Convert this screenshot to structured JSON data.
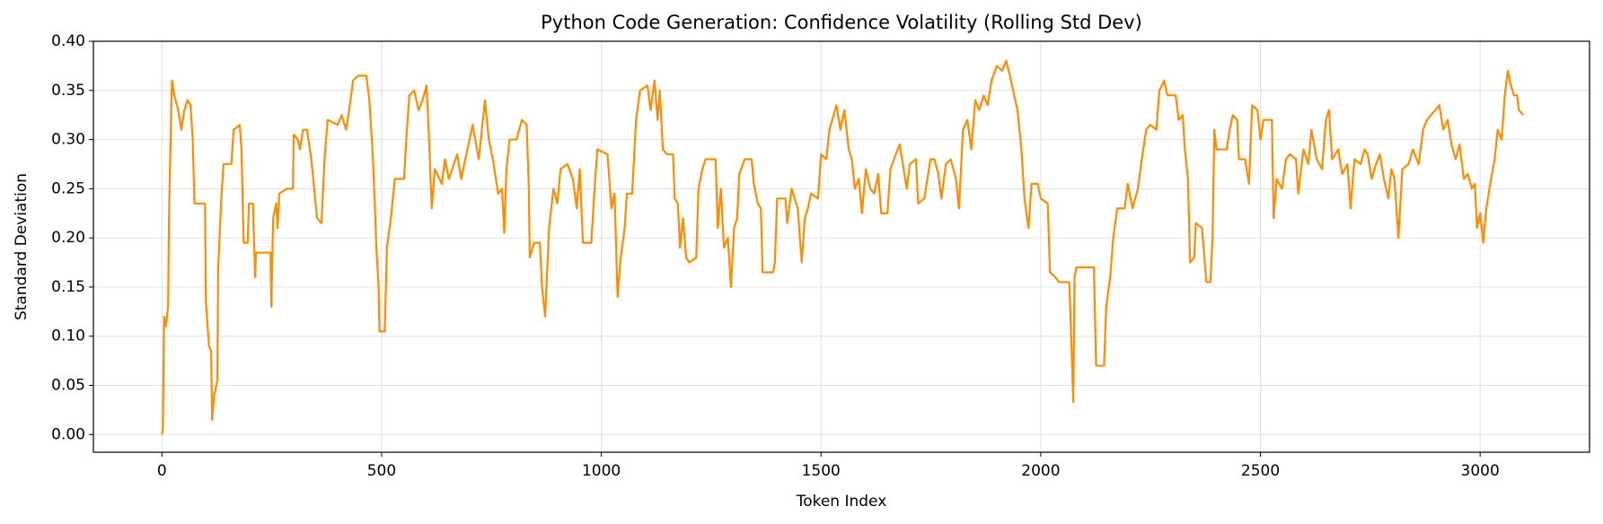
{
  "chart_data": {
    "type": "line",
    "title": "Python Code Generation: Confidence Volatility (Rolling Std Dev)",
    "xlabel": "Token Index",
    "ylabel": "Standard Deviation",
    "color": "#ff8c00",
    "grid": true,
    "xlim": [
      -156,
      3249
    ],
    "ylim": [
      -0.018,
      0.4
    ],
    "xticks": [
      0,
      500,
      1000,
      1500,
      2000,
      2500,
      3000
    ],
    "yticks": [
      {
        "value": 0,
        "label": "0.00"
      },
      {
        "value": 0.05,
        "label": "0.05"
      },
      {
        "value": 0.1,
        "label": "0.10"
      },
      {
        "value": 0.15,
        "label": "0.15"
      },
      {
        "value": 0.2,
        "label": "0.20"
      },
      {
        "value": 0.25,
        "label": "0.25"
      },
      {
        "value": 0.3,
        "label": "0.30"
      },
      {
        "value": 0.35,
        "label": "0.35"
      },
      {
        "value": 0.4,
        "label": "0.40"
      }
    ],
    "x": [
      0,
      2,
      5,
      9,
      14,
      16,
      21,
      23,
      28,
      37,
      44,
      51,
      58,
      65,
      70,
      74,
      98,
      100,
      107,
      112,
      114,
      119,
      126,
      128,
      135,
      140,
      158,
      163,
      177,
      181,
      186,
      195,
      198,
      207,
      212,
      214,
      247,
      249,
      253,
      260,
      263,
      267,
      284,
      298,
      300,
      309,
      314,
      321,
      330,
      340,
      353,
      363,
      370,
      377,
      400,
      409,
      419,
      426,
      435,
      447,
      465,
      472,
      479,
      484,
      488,
      493,
      495,
      507,
      512,
      521,
      530,
      551,
      556,
      563,
      574,
      584,
      593,
      602,
      607,
      614,
      621,
      637,
      644,
      653,
      672,
      681,
      707,
      721,
      735,
      744,
      753,
      765,
      774,
      779,
      784,
      791,
      807,
      819,
      830,
      835,
      837,
      847,
      860,
      865,
      872,
      881,
      891,
      900,
      907,
      923,
      935,
      944,
      951,
      958,
      977,
      986,
      991,
      1014,
      1023,
      1030,
      1037,
      1044,
      1053,
      1058,
      1070,
      1079,
      1088,
      1105,
      1112,
      1121,
      1128,
      1133,
      1140,
      1149,
      1163,
      1167,
      1174,
      1179,
      1186,
      1193,
      1200,
      1216,
      1221,
      1230,
      1237,
      1260,
      1265,
      1272,
      1279,
      1288,
      1295,
      1302,
      1309,
      1314,
      1326,
      1342,
      1347,
      1356,
      1363,
      1367,
      1391,
      1395,
      1400,
      1419,
      1423,
      1433,
      1447,
      1456,
      1463,
      1470,
      1477,
      1493,
      1500,
      1512,
      1519,
      1535,
      1544,
      1553,
      1563,
      1570,
      1577,
      1586,
      1593,
      1602,
      1612,
      1621,
      1630,
      1637,
      1651,
      1658,
      1670,
      1679,
      1688,
      1695,
      1702,
      1716,
      1721,
      1735,
      1749,
      1758,
      1767,
      1774,
      1784,
      1795,
      1807,
      1814,
      1823,
      1833,
      1842,
      1851,
      1860,
      1870,
      1879,
      1888,
      1900,
      1912,
      1921,
      1930,
      1937,
      1947,
      1956,
      1963,
      1972,
      1979,
      1993,
      2000,
      2016,
      2021,
      2033,
      2042,
      2065,
      2070,
      2074,
      2077,
      2081,
      2121,
      2126,
      2144,
      2149,
      2158,
      2165,
      2174,
      2191,
      2198,
      2209,
      2221,
      2230,
      2240,
      2249,
      2263,
      2270,
      2281,
      2288,
      2307,
      2314,
      2323,
      2328,
      2335,
      2340,
      2349,
      2353,
      2367,
      2377,
      2386,
      2391,
      2395,
      2400,
      2423,
      2430,
      2437,
      2447,
      2451,
      2465,
      2474,
      2481,
      2493,
      2500,
      2507,
      2526,
      2530,
      2537,
      2549,
      2558,
      2567,
      2581,
      2586,
      2598,
      2609,
      2616,
      2628,
      2640,
      2649,
      2656,
      2663,
      2677,
      2686,
      2698,
      2705,
      2714,
      2728,
      2737,
      2744,
      2753,
      2763,
      2772,
      2781,
      2791,
      2798,
      2805,
      2814,
      2823,
      2837,
      2847,
      2860,
      2870,
      2879,
      2888,
      2898,
      2907,
      2916,
      2926,
      2935,
      2944,
      2953,
      2963,
      2972,
      2981,
      2988,
      2993,
      3000,
      3007,
      3014,
      3023,
      3033,
      3040,
      3049,
      3056,
      3063,
      3070,
      3077,
      3084,
      3088,
      3098
    ],
    "values": [
      0.0,
      0.005,
      0.12,
      0.11,
      0.13,
      0.22,
      0.33,
      0.36,
      0.345,
      0.33,
      0.31,
      0.33,
      0.34,
      0.335,
      0.3,
      0.235,
      0.235,
      0.135,
      0.09,
      0.085,
      0.015,
      0.04,
      0.055,
      0.17,
      0.24,
      0.275,
      0.275,
      0.31,
      0.315,
      0.29,
      0.195,
      0.195,
      0.235,
      0.235,
      0.16,
      0.185,
      0.185,
      0.13,
      0.22,
      0.235,
      0.21,
      0.245,
      0.25,
      0.25,
      0.305,
      0.3,
      0.29,
      0.31,
      0.31,
      0.28,
      0.22,
      0.215,
      0.28,
      0.32,
      0.315,
      0.325,
      0.31,
      0.33,
      0.36,
      0.365,
      0.365,
      0.34,
      0.29,
      0.24,
      0.19,
      0.15,
      0.105,
      0.105,
      0.19,
      0.22,
      0.26,
      0.26,
      0.3,
      0.345,
      0.35,
      0.33,
      0.34,
      0.355,
      0.31,
      0.23,
      0.27,
      0.255,
      0.28,
      0.26,
      0.285,
      0.26,
      0.315,
      0.28,
      0.34,
      0.3,
      0.28,
      0.245,
      0.25,
      0.205,
      0.27,
      0.3,
      0.3,
      0.32,
      0.315,
      0.25,
      0.18,
      0.195,
      0.195,
      0.15,
      0.12,
      0.21,
      0.25,
      0.235,
      0.27,
      0.275,
      0.26,
      0.23,
      0.27,
      0.195,
      0.195,
      0.26,
      0.29,
      0.285,
      0.23,
      0.245,
      0.14,
      0.18,
      0.21,
      0.245,
      0.245,
      0.32,
      0.35,
      0.355,
      0.33,
      0.36,
      0.32,
      0.35,
      0.29,
      0.285,
      0.285,
      0.24,
      0.235,
      0.19,
      0.22,
      0.18,
      0.175,
      0.18,
      0.25,
      0.27,
      0.28,
      0.28,
      0.21,
      0.25,
      0.19,
      0.2,
      0.15,
      0.21,
      0.22,
      0.265,
      0.28,
      0.28,
      0.255,
      0.235,
      0.23,
      0.165,
      0.165,
      0.175,
      0.24,
      0.24,
      0.215,
      0.25,
      0.23,
      0.175,
      0.22,
      0.23,
      0.245,
      0.24,
      0.285,
      0.28,
      0.31,
      0.335,
      0.31,
      0.33,
      0.29,
      0.28,
      0.25,
      0.26,
      0.225,
      0.27,
      0.25,
      0.245,
      0.265,
      0.225,
      0.225,
      0.27,
      0.285,
      0.295,
      0.27,
      0.25,
      0.275,
      0.28,
      0.235,
      0.24,
      0.28,
      0.28,
      0.265,
      0.24,
      0.275,
      0.28,
      0.26,
      0.23,
      0.31,
      0.32,
      0.29,
      0.34,
      0.33,
      0.345,
      0.335,
      0.36,
      0.375,
      0.37,
      0.38,
      0.365,
      0.35,
      0.33,
      0.29,
      0.24,
      0.21,
      0.255,
      0.255,
      0.24,
      0.235,
      0.165,
      0.16,
      0.155,
      0.155,
      0.09,
      0.033,
      0.16,
      0.17,
      0.17,
      0.07,
      0.07,
      0.13,
      0.16,
      0.2,
      0.23,
      0.23,
      0.255,
      0.23,
      0.25,
      0.28,
      0.31,
      0.315,
      0.31,
      0.35,
      0.36,
      0.345,
      0.345,
      0.32,
      0.325,
      0.29,
      0.26,
      0.175,
      0.18,
      0.215,
      0.21,
      0.155,
      0.155,
      0.2,
      0.31,
      0.29,
      0.29,
      0.31,
      0.325,
      0.32,
      0.28,
      0.28,
      0.255,
      0.335,
      0.33,
      0.3,
      0.32,
      0.32,
      0.22,
      0.26,
      0.25,
      0.28,
      0.285,
      0.28,
      0.245,
      0.29,
      0.275,
      0.31,
      0.28,
      0.27,
      0.32,
      0.33,
      0.28,
      0.29,
      0.265,
      0.275,
      0.23,
      0.28,
      0.275,
      0.29,
      0.285,
      0.26,
      0.275,
      0.285,
      0.26,
      0.24,
      0.27,
      0.26,
      0.2,
      0.27,
      0.275,
      0.29,
      0.275,
      0.31,
      0.32,
      0.325,
      0.33,
      0.335,
      0.31,
      0.32,
      0.295,
      0.28,
      0.295,
      0.26,
      0.265,
      0.25,
      0.255,
      0.21,
      0.225,
      0.195,
      0.23,
      0.255,
      0.28,
      0.31,
      0.3,
      0.345,
      0.37,
      0.355,
      0.345,
      0.345,
      0.33,
      0.325
    ]
  }
}
